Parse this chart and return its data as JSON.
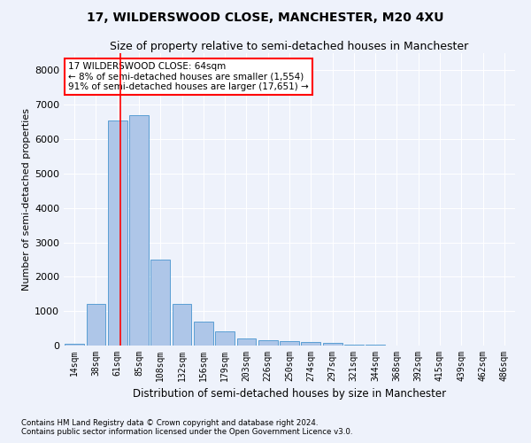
{
  "title1": "17, WILDERSWOOD CLOSE, MANCHESTER, M20 4XU",
  "title2": "Size of property relative to semi-detached houses in Manchester",
  "xlabel": "Distribution of semi-detached houses by size in Manchester",
  "ylabel": "Number of semi-detached properties",
  "footnote1": "Contains HM Land Registry data © Crown copyright and database right 2024.",
  "footnote2": "Contains public sector information licensed under the Open Government Licence v3.0.",
  "categories": [
    "14sqm",
    "38sqm",
    "61sqm",
    "85sqm",
    "108sqm",
    "132sqm",
    "156sqm",
    "179sqm",
    "203sqm",
    "226sqm",
    "250sqm",
    "274sqm",
    "297sqm",
    "321sqm",
    "344sqm",
    "368sqm",
    "392sqm",
    "415sqm",
    "439sqm",
    "462sqm",
    "486sqm"
  ],
  "values": [
    50,
    1200,
    6550,
    6700,
    2500,
    1200,
    700,
    420,
    200,
    150,
    130,
    100,
    90,
    30,
    15,
    8,
    5,
    5,
    3,
    2,
    1
  ],
  "bar_color": "#aec6e8",
  "bar_edge_color": "#5a9fd4",
  "vline_x_index": 2.15,
  "vline_color": "red",
  "annotation_text": "17 WILDERSWOOD CLOSE: 64sqm\n← 8% of semi-detached houses are smaller (1,554)\n91% of semi-detached houses are larger (17,651) →",
  "annotation_box_color": "white",
  "annotation_box_edge_color": "red",
  "ylim": [
    0,
    8500
  ],
  "yticks": [
    0,
    1000,
    2000,
    3000,
    4000,
    5000,
    6000,
    7000,
    8000
  ],
  "background_color": "#eef2fb",
  "grid_color": "white",
  "title1_fontsize": 10,
  "title2_fontsize": 9,
  "xlabel_fontsize": 8.5,
  "ylabel_fontsize": 8
}
